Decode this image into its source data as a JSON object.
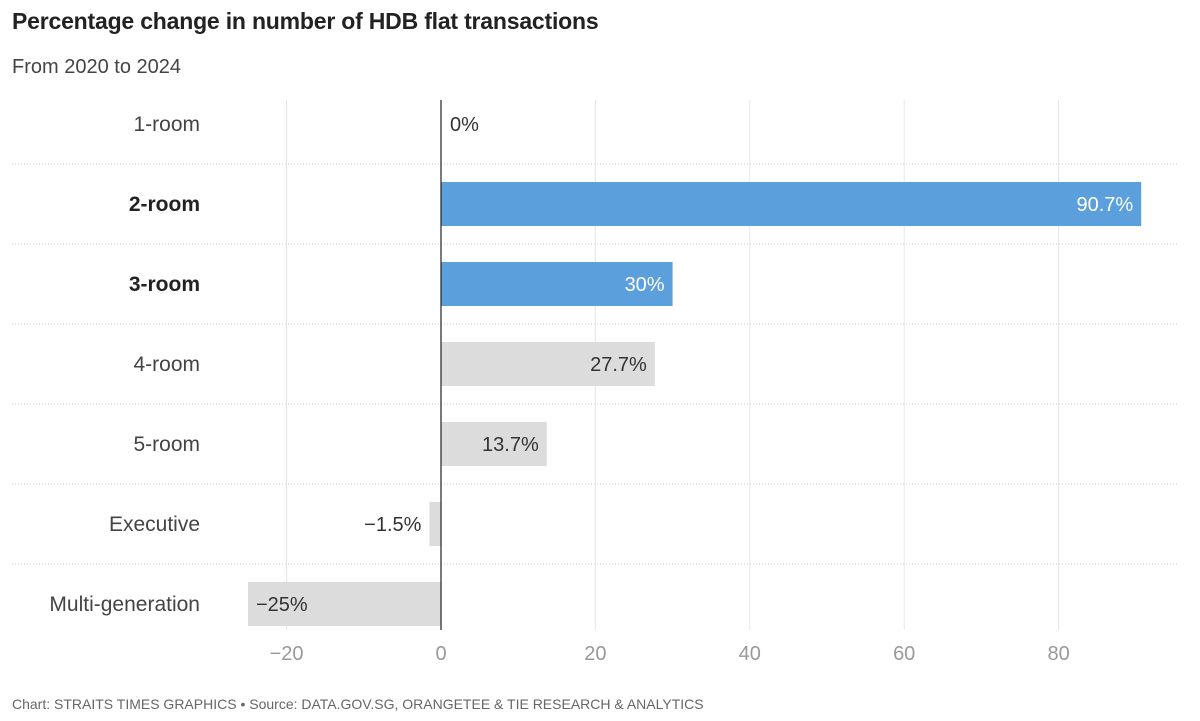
{
  "title": "Percentage change in number of HDB flat transactions",
  "subtitle": "From 2020 to 2024",
  "footer": "Chart: STRAITS TIMES GRAPHICS • Source: DATA.GOV.SG, ORANGETEE & TIE RESEARCH & ANALYTICS",
  "colors": {
    "highlight": "#5b9fdc",
    "default": "#dcdcdc",
    "axis": "#222222",
    "grid": "#e6e6e6",
    "separator": "#cccccc"
  },
  "chart_data": {
    "type": "bar",
    "orientation": "horizontal",
    "title": "Percentage change in number of HDB flat transactions",
    "subtitle": "From 2020 to 2024",
    "categories": [
      "1-room",
      "2-room",
      "3-room",
      "4-room",
      "5-room",
      "Executive",
      "Multi-generation"
    ],
    "values": [
      0,
      90.7,
      30,
      27.7,
      13.7,
      -1.5,
      -25
    ],
    "value_labels": [
      "0%",
      "90.7%",
      "30%",
      "27.7%",
      "13.7%",
      "−1.5%",
      "−25%"
    ],
    "highlighted": [
      false,
      true,
      true,
      false,
      false,
      false,
      false
    ],
    "xlim": [
      -25,
      91
    ],
    "xticks": [
      -20,
      0,
      20,
      40,
      60,
      80
    ],
    "xtick_labels": [
      "−20",
      "0",
      "20",
      "40",
      "60",
      "80"
    ],
    "grid": true
  }
}
